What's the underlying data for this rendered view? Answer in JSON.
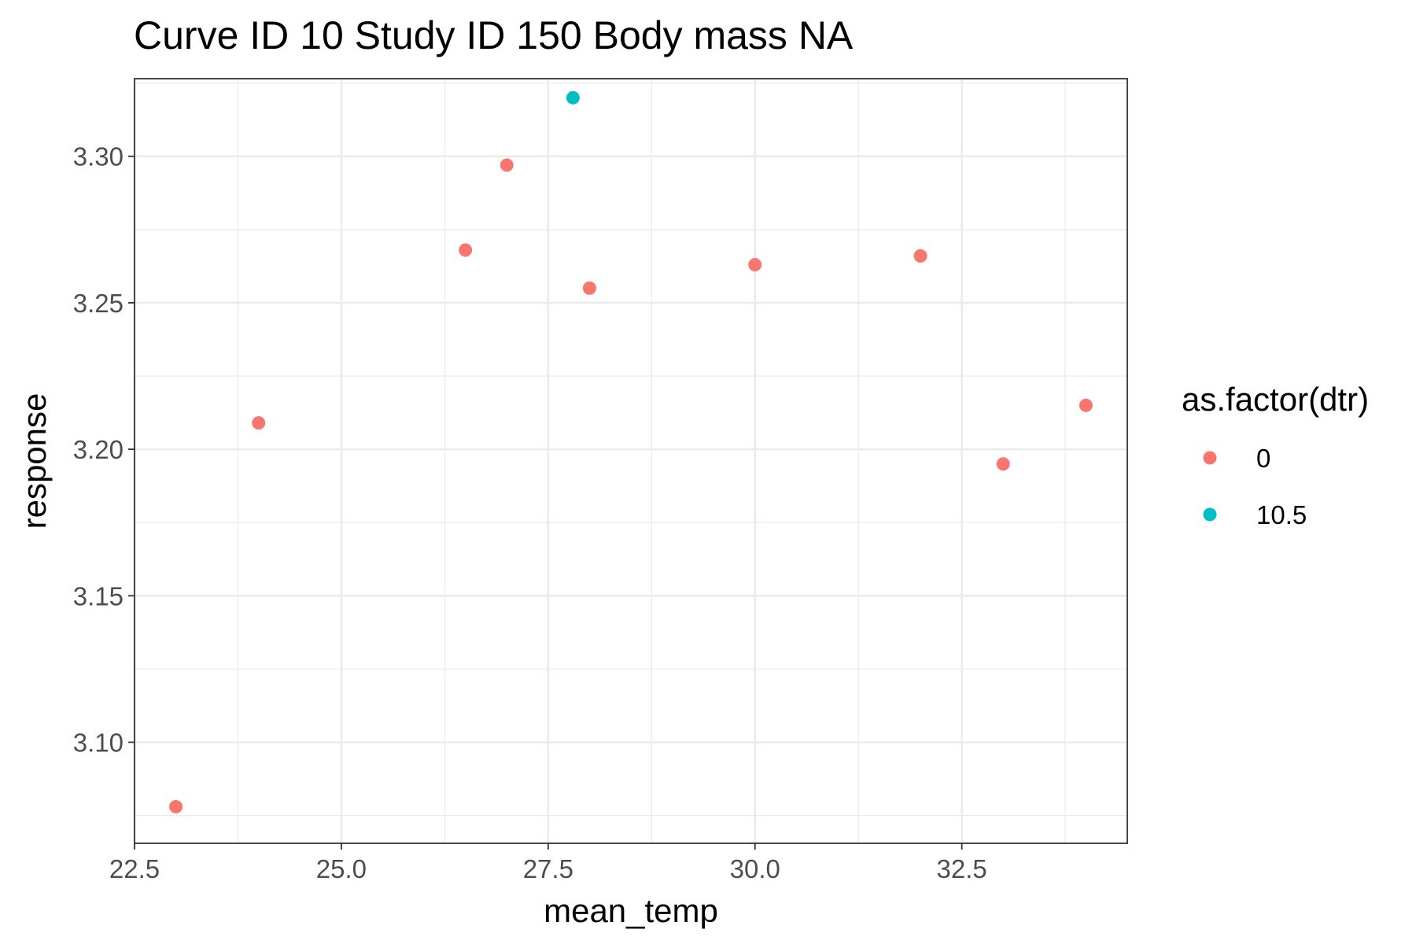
{
  "chart_data": {
    "type": "scatter",
    "title": "Curve ID 10 Study ID 150 Body mass NA",
    "xlabel": "mean_temp",
    "ylabel": "response",
    "xlim": [
      22.5,
      34.5
    ],
    "ylim": [
      3.0655,
      3.3265
    ],
    "x_ticks": [
      22.5,
      25.0,
      27.5,
      30.0,
      32.5
    ],
    "x_tick_labels": [
      "22.5",
      "25.0",
      "27.5",
      "30.0",
      "32.5"
    ],
    "y_ticks": [
      3.1,
      3.15,
      3.2,
      3.25,
      3.3
    ],
    "y_tick_labels": [
      "3.10",
      "3.15",
      "3.20",
      "3.25",
      "3.30"
    ],
    "grid": true,
    "legend": {
      "title": "as.factor(dtr)",
      "placement": "right",
      "entries": [
        {
          "label": "0",
          "color": "#F8766D"
        },
        {
          "label": "10.5",
          "color": "#00BFC4"
        }
      ]
    },
    "series": [
      {
        "name": "0",
        "color": "#F8766D",
        "points": [
          {
            "x": 23.0,
            "y": 3.078
          },
          {
            "x": 24.0,
            "y": 3.209
          },
          {
            "x": 26.5,
            "y": 3.268
          },
          {
            "x": 27.0,
            "y": 3.297
          },
          {
            "x": 28.0,
            "y": 3.255
          },
          {
            "x": 30.0,
            "y": 3.263
          },
          {
            "x": 32.0,
            "y": 3.266
          },
          {
            "x": 33.0,
            "y": 3.195
          },
          {
            "x": 34.0,
            "y": 3.215
          }
        ]
      },
      {
        "name": "10.5",
        "color": "#00BFC4",
        "points": [
          {
            "x": 27.8,
            "y": 3.32
          }
        ]
      }
    ]
  }
}
